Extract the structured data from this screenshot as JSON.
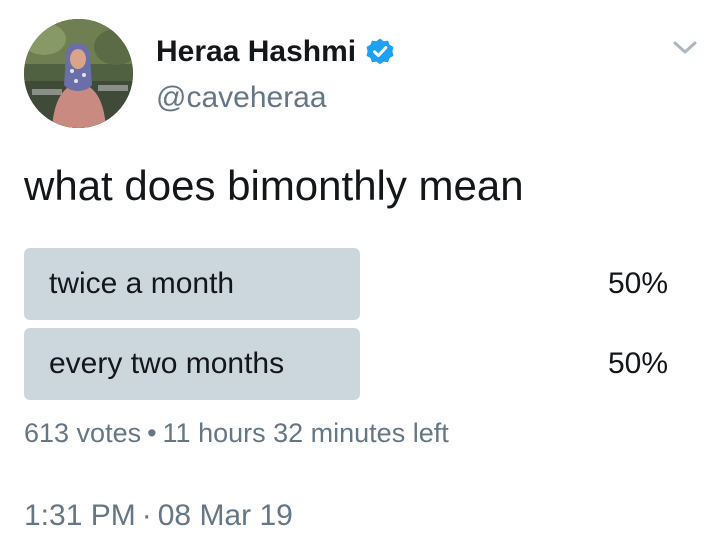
{
  "author": {
    "display_name": "Heraa Hashmi",
    "handle": "@caveheraa",
    "verified": true,
    "avatar_icon": "profile-photo"
  },
  "tweet": {
    "text": "what does bimonthly mean"
  },
  "poll": {
    "options": [
      {
        "label": "twice a month",
        "percent_text": "50%",
        "share": 0.5
      },
      {
        "label": "every two months",
        "percent_text": "50%",
        "share": 0.5
      }
    ],
    "votes": "613 votes",
    "separator": "•",
    "time_left": "11 hours 32 minutes left"
  },
  "timestamp": {
    "time": "1:31 PM",
    "separator": "·",
    "date": "08 Mar 19"
  },
  "menu": {
    "icon": "chevron-down-icon"
  },
  "colors": {
    "poll_bar": "#ccd6dd",
    "secondary_text": "#657786",
    "verified_blue": "#1da1f2",
    "primary_text": "#14171a"
  }
}
